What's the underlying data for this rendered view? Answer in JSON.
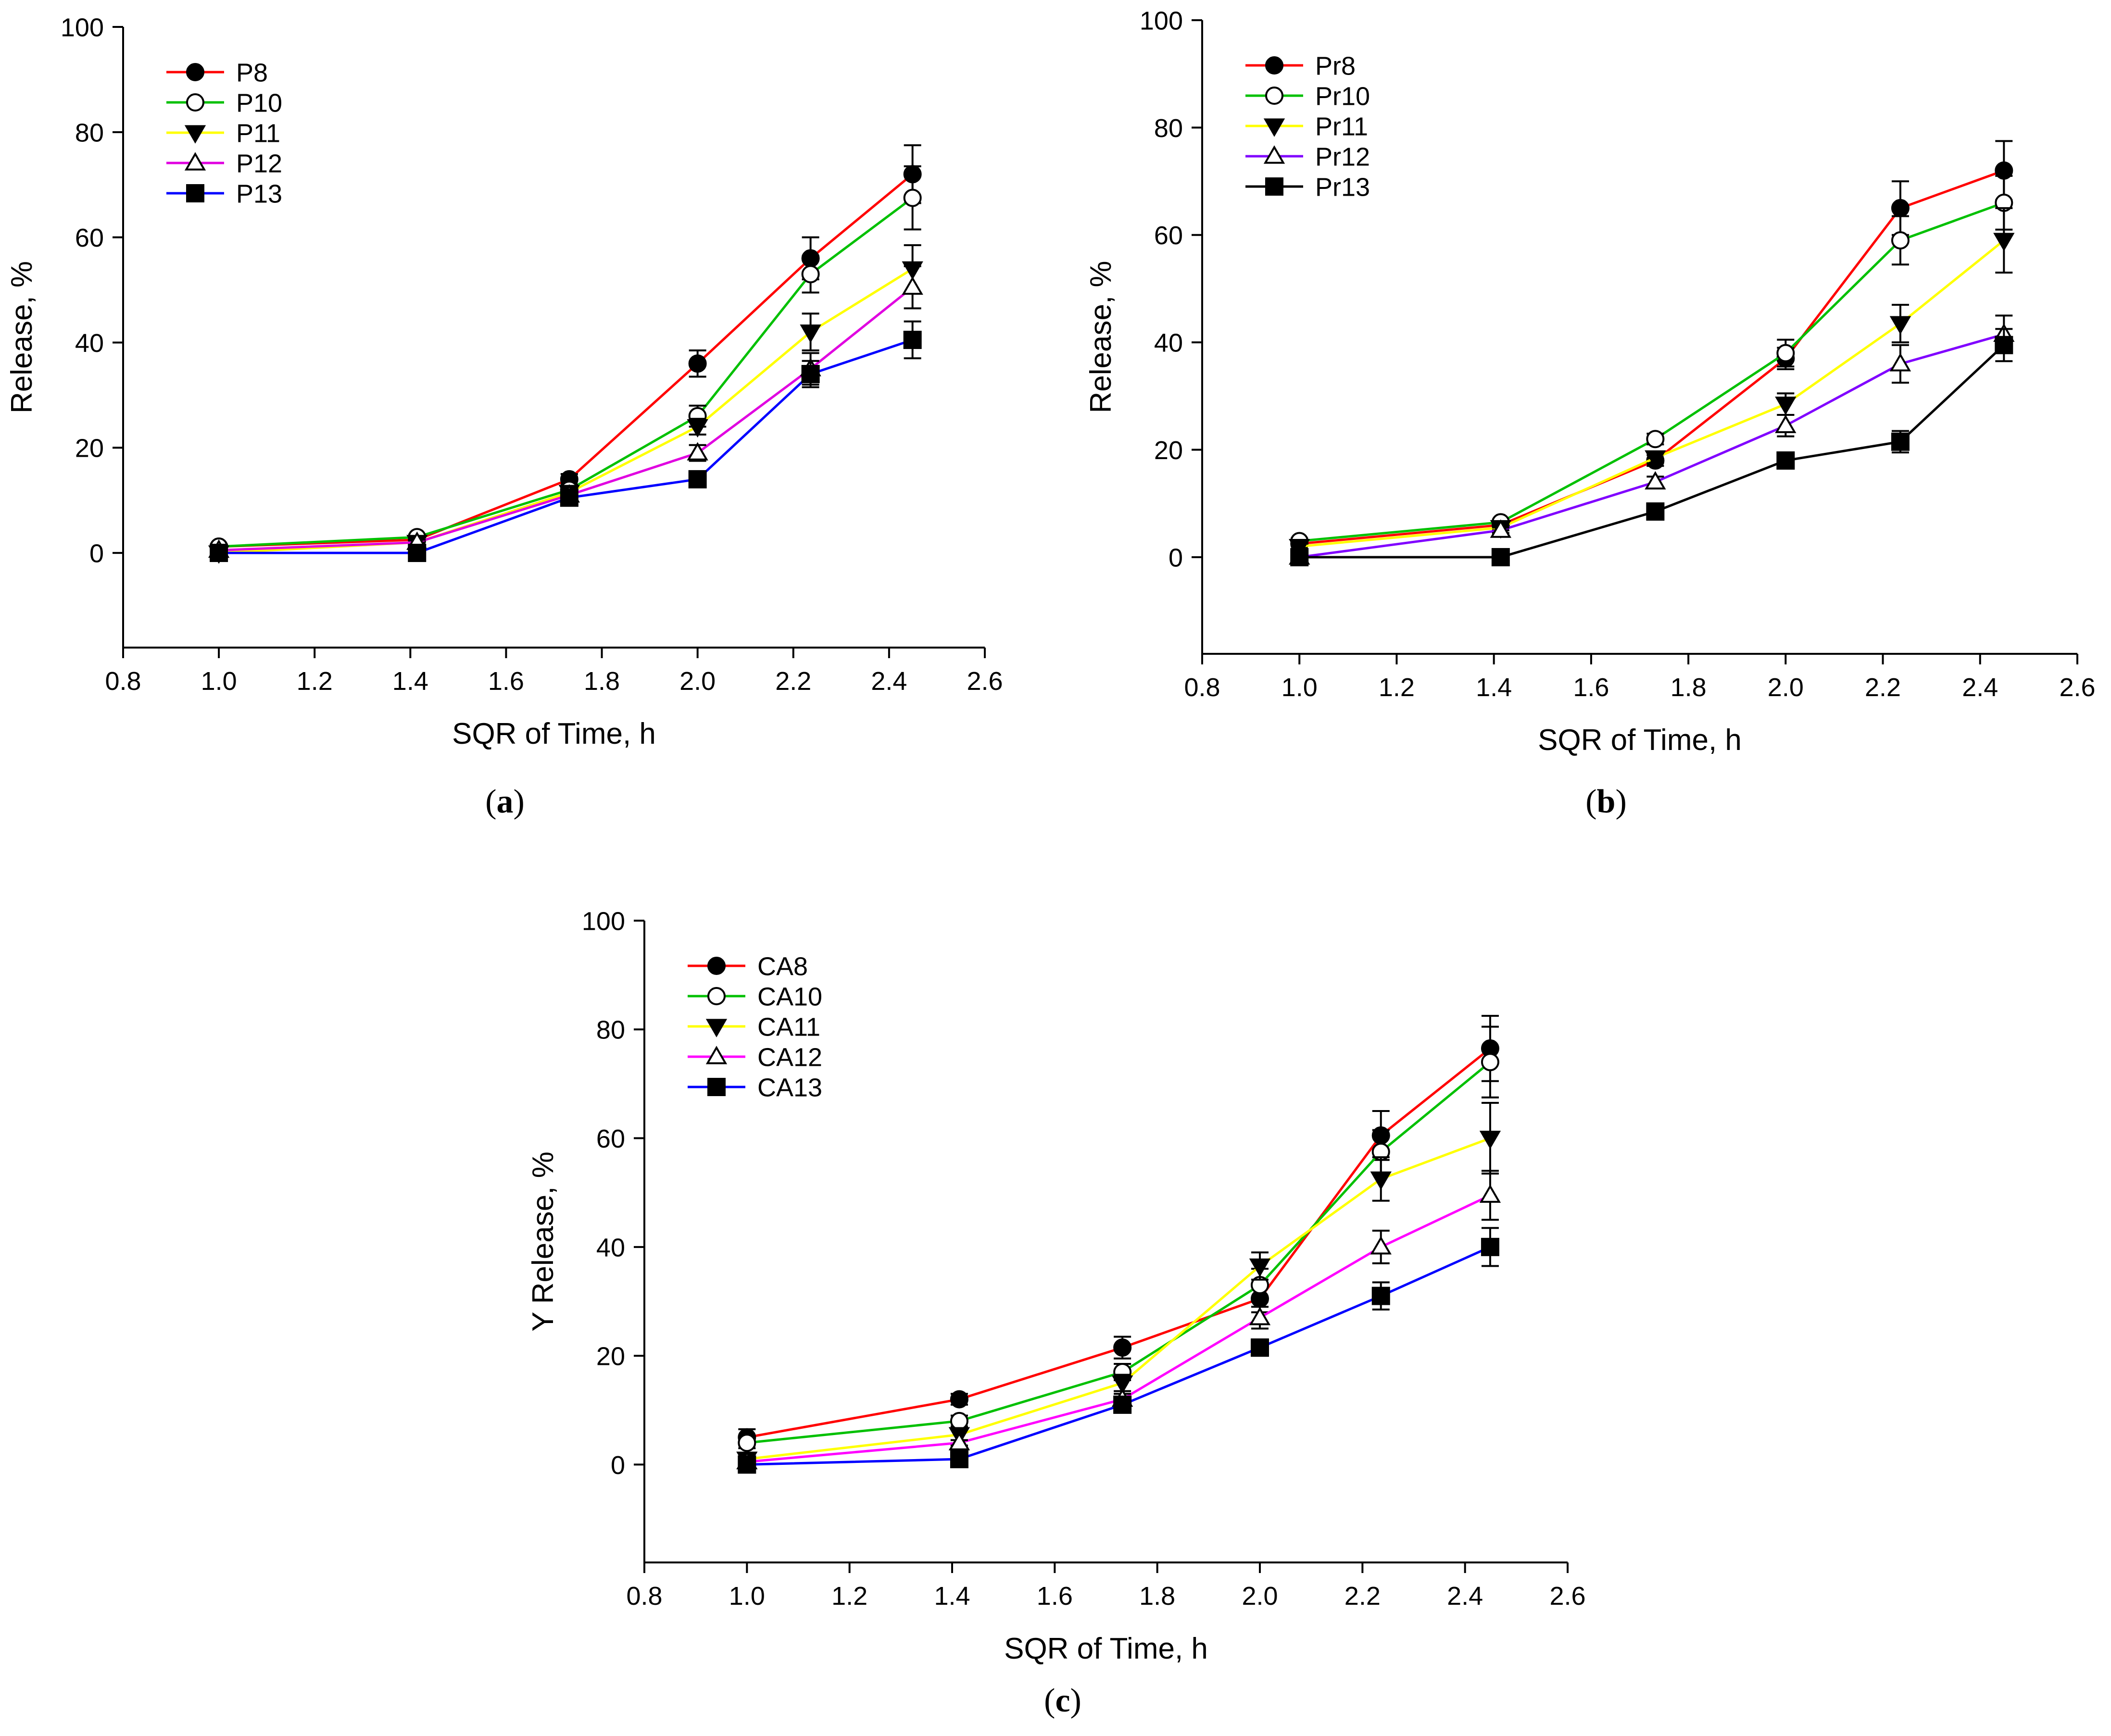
{
  "chart_data": [
    {
      "id": "a",
      "type": "line",
      "caption_letter": "a",
      "xlabel": "SQR of Time, h",
      "ylabel": "Release, %",
      "xlim": [
        0.8,
        2.6
      ],
      "ylim": [
        -18,
        100
      ],
      "xticks": [
        0.8,
        1.0,
        1.2,
        1.4,
        1.6,
        1.8,
        2.0,
        2.2,
        2.4,
        2.6
      ],
      "xtick_labels": [
        "0.8",
        "1.0",
        "1.2",
        "1.4",
        "1.6",
        "1.8",
        "2.0",
        "2.2",
        "2.4",
        "2.6"
      ],
      "yticks": [
        0,
        20,
        40,
        60,
        80,
        100
      ],
      "ytick_labels": [
        "0",
        "20",
        "40",
        "60",
        "80",
        "100"
      ],
      "grid": false,
      "legend_position": "top-left",
      "x": [
        1.0,
        1.414,
        1.732,
        2.0,
        2.236,
        2.449
      ],
      "series": [
        {
          "name": "P8",
          "color": "#ff0000",
          "marker": "circle-filled",
          "values": [
            1.2,
            2.5,
            14.0,
            36.0,
            56.0,
            72.0
          ],
          "errors": [
            0.5,
            0.5,
            1.0,
            2.5,
            4.0,
            5.5
          ]
        },
        {
          "name": "P10",
          "color": "#00c000",
          "marker": "circle-open",
          "values": [
            1.2,
            3.0,
            12.0,
            26.0,
            53.0,
            67.5
          ],
          "errors": [
            0.5,
            0.5,
            1.0,
            2.0,
            3.5,
            6.0
          ]
        },
        {
          "name": "P11",
          "color": "#ffff00",
          "marker": "triangle-down-filled",
          "values": [
            0.0,
            2.0,
            11.5,
            24.0,
            42.0,
            54.0
          ],
          "errors": [
            0.5,
            0.5,
            1.0,
            1.5,
            3.5,
            4.5
          ]
        },
        {
          "name": "P12",
          "color": "#e000e0",
          "marker": "triangle-up-open",
          "values": [
            0.5,
            2.0,
            11.0,
            19.0,
            35.0,
            50.5
          ],
          "errors": [
            0.5,
            0.5,
            1.0,
            1.5,
            3.0,
            4.0
          ]
        },
        {
          "name": "P13",
          "color": "#0000ff",
          "marker": "square-filled",
          "values": [
            0.0,
            0.0,
            10.5,
            14.0,
            34.0,
            40.5
          ],
          "errors": [
            0.5,
            0.5,
            1.0,
            1.0,
            2.5,
            3.5
          ]
        }
      ]
    },
    {
      "id": "b",
      "type": "line",
      "caption_letter": "b",
      "xlabel": "SQR of Time, h",
      "ylabel": "Release, %",
      "xlim": [
        0.8,
        2.6
      ],
      "ylim": [
        -18,
        100
      ],
      "xticks": [
        0.8,
        1.0,
        1.2,
        1.4,
        1.6,
        1.8,
        2.0,
        2.2,
        2.4,
        2.6
      ],
      "xtick_labels": [
        "0.8",
        "1.0",
        "1.2",
        "1.4",
        "1.6",
        "1.8",
        "2.0",
        "2.2",
        "2.4",
        "2.6"
      ],
      "yticks": [
        0,
        20,
        40,
        60,
        80,
        100
      ],
      "ytick_labels": [
        "0",
        "20",
        "40",
        "60",
        "80",
        "100"
      ],
      "grid": false,
      "legend_position": "top-left",
      "x": [
        1.0,
        1.414,
        1.732,
        2.0,
        2.236,
        2.449
      ],
      "series": [
        {
          "name": "Pr8",
          "color": "#ff0000",
          "marker": "circle-filled",
          "values": [
            2.5,
            6.0,
            18.0,
            37.0,
            65.0,
            72.0
          ],
          "errors": [
            0.5,
            0.5,
            1.0,
            2.0,
            5.0,
            5.5
          ]
        },
        {
          "name": "Pr10",
          "color": "#00c000",
          "marker": "circle-open",
          "values": [
            3.0,
            6.5,
            22.0,
            38.0,
            59.0,
            66.0
          ],
          "errors": [
            0.5,
            0.5,
            1.0,
            2.5,
            4.5,
            5.0
          ]
        },
        {
          "name": "Pr11",
          "color": "#ffff00",
          "marker": "triangle-down-filled",
          "values": [
            2.0,
            5.5,
            18.5,
            28.5,
            43.5,
            59.0
          ],
          "errors": [
            0.5,
            0.5,
            1.0,
            2.0,
            3.5,
            6.0
          ]
        },
        {
          "name": "Pr12",
          "color": "#8000ff",
          "marker": "triangle-up-open",
          "values": [
            0.0,
            5.0,
            14.0,
            24.5,
            36.0,
            41.5
          ],
          "errors": [
            0.5,
            0.5,
            1.0,
            2.0,
            3.5,
            3.5
          ]
        },
        {
          "name": "Pr13",
          "color": "#000000",
          "marker": "square-filled",
          "values": [
            0.0,
            0.0,
            8.5,
            18.0,
            21.5,
            39.5
          ],
          "errors": [
            0.5,
            0.5,
            1.0,
            1.0,
            2.0,
            3.0
          ]
        }
      ]
    },
    {
      "id": "c",
      "type": "line",
      "caption_letter": "c",
      "xlabel": "SQR of Time, h",
      "ylabel": "Y Release, %",
      "xlim": [
        0.8,
        2.6
      ],
      "ylim": [
        -18,
        100
      ],
      "xticks": [
        0.8,
        1.0,
        1.2,
        1.4,
        1.6,
        1.8,
        2.0,
        2.2,
        2.4,
        2.6
      ],
      "xtick_labels": [
        "0.8",
        "1.0",
        "1.2",
        "1.4",
        "1.6",
        "1.8",
        "2.0",
        "2.2",
        "2.4",
        "2.6"
      ],
      "yticks": [
        0,
        20,
        40,
        60,
        80,
        100
      ],
      "ytick_labels": [
        "0",
        "20",
        "40",
        "60",
        "80",
        "100"
      ],
      "grid": false,
      "legend_position": "top-left",
      "x": [
        1.0,
        1.414,
        1.732,
        2.0,
        2.236,
        2.449
      ],
      "series": [
        {
          "name": "CA8",
          "color": "#ff0000",
          "marker": "circle-filled",
          "values": [
            5.0,
            12.0,
            21.5,
            30.5,
            60.5,
            76.5
          ],
          "errors": [
            1.5,
            1.0,
            2.0,
            2.5,
            4.5,
            6.0
          ]
        },
        {
          "name": "CA10",
          "color": "#00c000",
          "marker": "circle-open",
          "values": [
            4.0,
            8.0,
            17.0,
            33.0,
            57.5,
            74.0
          ],
          "errors": [
            1.0,
            1.0,
            1.5,
            3.0,
            4.0,
            6.5
          ]
        },
        {
          "name": "CA11",
          "color": "#ffff00",
          "marker": "triangle-down-filled",
          "values": [
            1.0,
            5.5,
            15.0,
            36.5,
            52.5,
            60.0
          ],
          "errors": [
            0.5,
            1.0,
            1.5,
            2.5,
            4.0,
            6.5
          ]
        },
        {
          "name": "CA12",
          "color": "#ff00ff",
          "marker": "triangle-up-open",
          "values": [
            0.5,
            4.0,
            12.0,
            27.0,
            40.0,
            49.5
          ],
          "errors": [
            0.5,
            0.5,
            1.0,
            2.0,
            3.0,
            4.5
          ]
        },
        {
          "name": "CA13",
          "color": "#0000ff",
          "marker": "square-filled",
          "values": [
            0.0,
            1.0,
            11.0,
            21.5,
            31.0,
            40.0
          ],
          "errors": [
            0.5,
            0.5,
            1.0,
            1.5,
            2.5,
            3.5
          ]
        }
      ]
    }
  ]
}
